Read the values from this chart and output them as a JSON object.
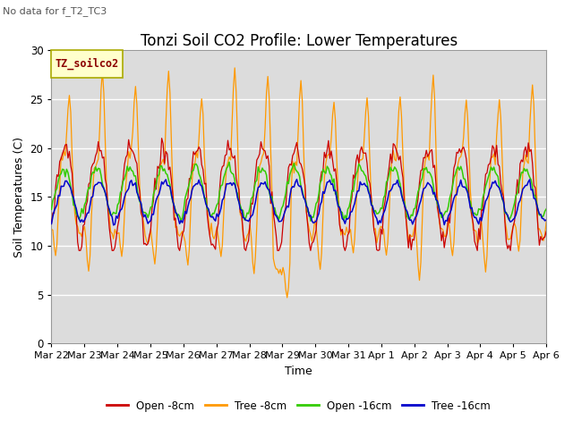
{
  "title": "Tonzi Soil CO2 Profile: Lower Temperatures",
  "subtitle": "No data for f_T2_TC3",
  "ylabel": "Soil Temperatures (C)",
  "xlabel": "Time",
  "ylim": [
    0,
    30
  ],
  "yticks": [
    0,
    5,
    10,
    15,
    20,
    25,
    30
  ],
  "xtick_labels": [
    "Mar 22",
    "Mar 23",
    "Mar 24",
    "Mar 25",
    "Mar 26",
    "Mar 27",
    "Mar 28",
    "Mar 29",
    "Mar 30",
    "Mar 31",
    "Apr 1",
    "Apr 2",
    "Apr 3",
    "Apr 4",
    "Apr 5",
    "Apr 6"
  ],
  "legend_label": "TZ_soilco2",
  "series_labels": [
    "Open -8cm",
    "Tree -8cm",
    "Open -16cm",
    "Tree -16cm"
  ],
  "series_colors": [
    "#cc0000",
    "#ff9900",
    "#33cc00",
    "#0000cc"
  ],
  "plot_bg_color": "#dcdcdc",
  "fig_bg_color": "#ffffff",
  "grid_color": "#ffffff",
  "title_fontsize": 12,
  "axis_fontsize": 9,
  "tick_fontsize": 8.5
}
